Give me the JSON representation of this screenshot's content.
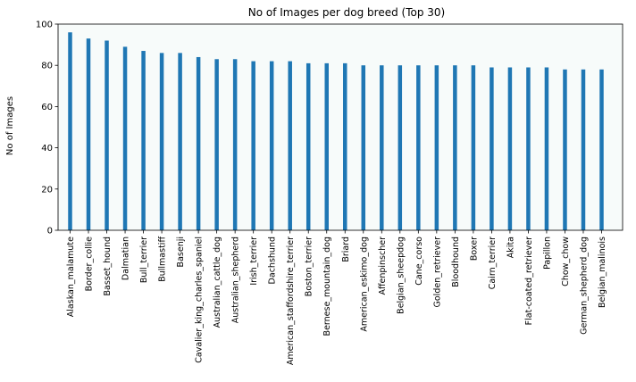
{
  "chart_data": {
    "type": "bar",
    "title": "No of Images per dog breed (Top 30)",
    "xlabel": "",
    "ylabel": "No of Images",
    "ylim": [
      0,
      100
    ],
    "yticks": [
      0,
      20,
      40,
      60,
      80,
      100
    ],
    "grid": false,
    "legend": "none",
    "bar_color": "#1f77b4",
    "plot_background": "#f7fbfa",
    "categories": [
      "Alaskan_malamute",
      "Border_collie",
      "Basset_hound",
      "Dalmatian",
      "Bull_terrier",
      "Bullmastiff",
      "Basenji",
      "Cavalier_king_charles_spaniel",
      "Australian_cattle_dog",
      "Australian_shepherd",
      "Irish_terrier",
      "Dachshund",
      "American_staffordshire_terrier",
      "Boston_terrier",
      "Bernese_mountain_dog",
      "Briard",
      "American_eskimo_dog",
      "Affenpinscher",
      "Belgian_sheepdog",
      "Cane_corso",
      "Golden_retriever",
      "Bloodhound",
      "Boxer",
      "Cairn_terrier",
      "Akita",
      "Flat-coated_retriever",
      "Papillon",
      "Chow_chow",
      "German_shepherd_dog",
      "Belgian_malinois"
    ],
    "values": [
      96,
      93,
      92,
      89,
      87,
      86,
      86,
      84,
      83,
      83,
      82,
      82,
      82,
      81,
      81,
      81,
      80,
      80,
      80,
      80,
      80,
      80,
      80,
      79,
      79,
      79,
      79,
      78,
      78,
      78
    ]
  }
}
